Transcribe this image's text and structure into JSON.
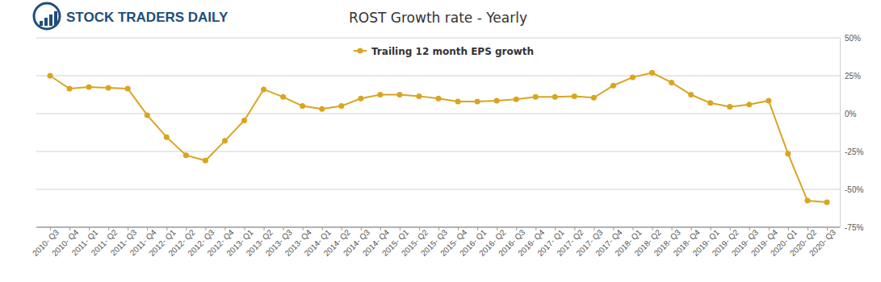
{
  "logo": "STOCK TRADERS DAILY",
  "chart_data": {
    "type": "line",
    "title": "ROST Growth rate - Yearly",
    "categories": [
      "2010- Q3",
      "2010- Q4",
      "2011- Q1",
      "2011- Q2",
      "2011- Q3",
      "2011- Q4",
      "2012- Q1",
      "2012- Q2",
      "2012- Q3",
      "2012- Q4",
      "2013- Q1",
      "2013- Q2",
      "2013- Q3",
      "2013- Q4",
      "2014- Q1",
      "2014- Q2",
      "2014- Q3",
      "2014- Q4",
      "2015- Q1",
      "2015- Q2",
      "2015- Q3",
      "2015- Q4",
      "2016- Q1",
      "2016- Q2",
      "2016- Q3",
      "2016- Q4",
      "2017- Q1",
      "2017- Q2",
      "2017- Q3",
      "2017- Q4",
      "2018- Q1",
      "2018- Q2",
      "2018- Q3",
      "2018- Q4",
      "2019- Q1",
      "2019- Q2",
      "2019- Q3",
      "2019- Q4",
      "2020- Q1",
      "2020- Q2",
      "2020- Q3"
    ],
    "series": [
      {
        "name": "Trailing 12 month EPS growth",
        "color": "#d9a520",
        "marker": "circle",
        "values": [
          25,
          16.5,
          17.5,
          17,
          16.5,
          -1,
          -15.5,
          -27.5,
          -31,
          -18,
          -4.5,
          16,
          11,
          5,
          3,
          5,
          10,
          12.5,
          12.5,
          11.5,
          10,
          8,
          8,
          8.5,
          9.5,
          11,
          11,
          11.5,
          10.5,
          18.5,
          24,
          27,
          20.5,
          12.5,
          7,
          4.5,
          6,
          8.5,
          -26.5,
          -57.5,
          -58.5
        ]
      }
    ],
    "ylim": [
      -75,
      50
    ],
    "yticks": [
      {
        "value": -75,
        "label": "-75%"
      },
      {
        "value": -50,
        "label": "-50%"
      },
      {
        "value": -25,
        "label": "-25%"
      },
      {
        "value": 0,
        "label": "0%"
      },
      {
        "value": 25,
        "label": "25%"
      },
      {
        "value": 50,
        "label": "50%"
      }
    ],
    "grid": true,
    "legend": "top"
  }
}
